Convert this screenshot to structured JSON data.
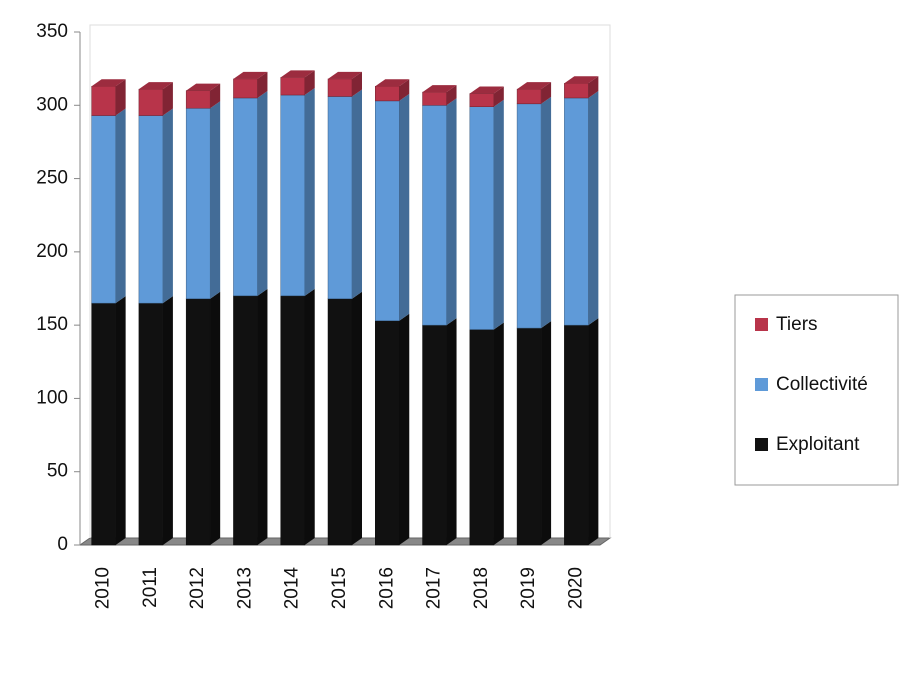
{
  "chart_data": {
    "type": "bar",
    "stacked": true,
    "categories": [
      "2010",
      "2011",
      "2012",
      "2013",
      "2014",
      "2015",
      "2016",
      "2017",
      "2018",
      "2019",
      "2020"
    ],
    "series": [
      {
        "name": "Exploitant",
        "color": "#111111",
        "values": [
          165,
          165,
          168,
          170,
          170,
          168,
          153,
          150,
          147,
          148,
          150
        ]
      },
      {
        "name": "Collectivité",
        "color": "#5f9ad8",
        "values": [
          128,
          128,
          130,
          135,
          137,
          138,
          150,
          150,
          152,
          153,
          155
        ]
      },
      {
        "name": "Tiers",
        "color": "#b8344a",
        "values": [
          20,
          18,
          12,
          13,
          12,
          12,
          10,
          9,
          9,
          10,
          10
        ]
      }
    ],
    "ylim": [
      0,
      350
    ],
    "yticks": [
      0,
      50,
      100,
      150,
      200,
      250,
      300,
      350
    ],
    "grid": false,
    "legend": "right"
  }
}
